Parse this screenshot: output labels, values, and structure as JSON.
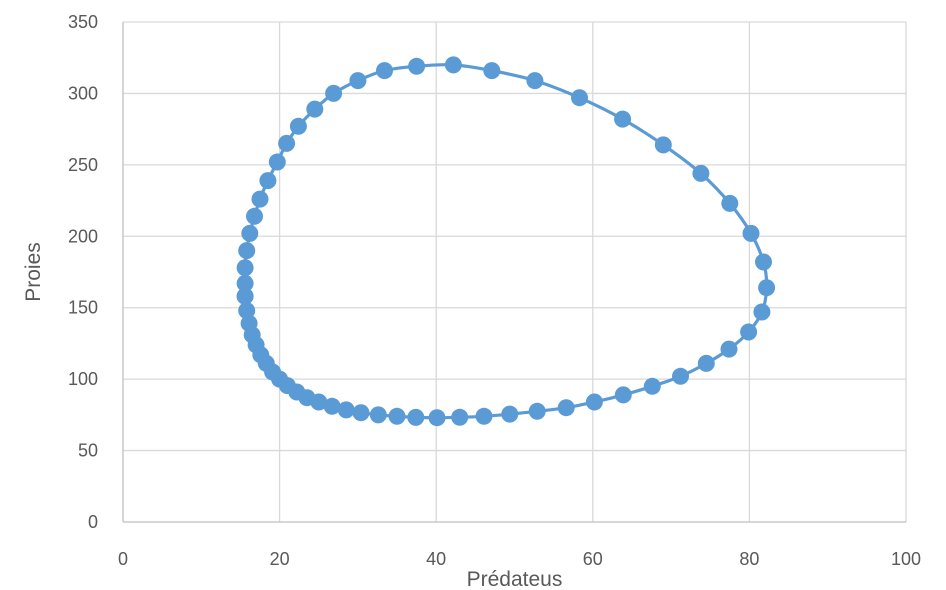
{
  "chart_data": {
    "type": "scatter",
    "title": "",
    "xlabel": "Prédateus",
    "ylabel": "Proies",
    "xlim": [
      0,
      100
    ],
    "ylim": [
      0,
      350
    ],
    "x_ticks": [
      0,
      20,
      40,
      60,
      80,
      100
    ],
    "y_ticks": [
      0,
      50,
      100,
      150,
      200,
      250,
      300,
      350
    ],
    "grid": true,
    "legend": "none",
    "marker": "circle",
    "line": "smooth",
    "color": "#5b9bd5",
    "series": [
      {
        "points": [
          [
            15.6,
            158
          ],
          [
            15.6,
            167
          ],
          [
            15.6,
            178
          ],
          [
            15.8,
            190
          ],
          [
            16.2,
            202
          ],
          [
            16.8,
            214
          ],
          [
            17.5,
            226
          ],
          [
            18.5,
            239
          ],
          [
            19.7,
            252
          ],
          [
            20.9,
            265
          ],
          [
            22.4,
            277
          ],
          [
            24.5,
            289
          ],
          [
            26.9,
            300
          ],
          [
            30.0,
            309
          ],
          [
            33.4,
            316
          ],
          [
            37.5,
            319
          ],
          [
            42.2,
            320
          ],
          [
            47.1,
            316
          ],
          [
            52.6,
            309
          ],
          [
            58.3,
            297
          ],
          [
            63.8,
            282
          ],
          [
            69.0,
            264
          ],
          [
            73.8,
            244
          ],
          [
            77.5,
            223
          ],
          [
            80.2,
            202
          ],
          [
            81.8,
            182
          ],
          [
            82.2,
            164
          ],
          [
            81.6,
            147
          ],
          [
            79.9,
            133
          ],
          [
            77.4,
            121
          ],
          [
            74.5,
            111
          ],
          [
            71.2,
            102
          ],
          [
            67.6,
            95
          ],
          [
            63.9,
            89
          ],
          [
            60.2,
            84
          ],
          [
            56.6,
            80
          ],
          [
            52.9,
            77.5
          ],
          [
            49.4,
            75.5
          ],
          [
            46.1,
            74
          ],
          [
            43.0,
            73.3
          ],
          [
            40.1,
            73
          ],
          [
            37.4,
            73.2
          ],
          [
            35.0,
            74
          ],
          [
            32.6,
            75
          ],
          [
            30.4,
            76.5
          ],
          [
            28.5,
            78.5
          ],
          [
            26.7,
            81
          ],
          [
            25.0,
            84
          ],
          [
            23.5,
            87
          ],
          [
            22.2,
            91
          ],
          [
            21.0,
            95.5
          ],
          [
            20.0,
            100
          ],
          [
            19.1,
            105
          ],
          [
            18.3,
            111
          ],
          [
            17.6,
            117
          ],
          [
            17.0,
            124
          ],
          [
            16.5,
            131
          ],
          [
            16.1,
            139
          ],
          [
            15.8,
            148
          ],
          [
            15.6,
            158
          ]
        ]
      }
    ]
  }
}
